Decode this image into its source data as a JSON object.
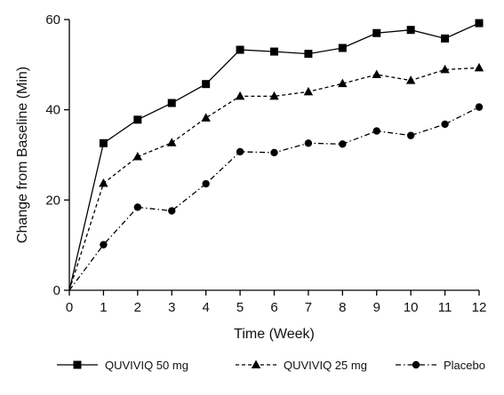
{
  "chart_data": {
    "type": "line",
    "xlabel": "Time (Week)",
    "ylabel": "Change from Baseline (Min)",
    "x": [
      0,
      1,
      2,
      3,
      4,
      5,
      6,
      7,
      8,
      9,
      10,
      11,
      12
    ],
    "xlim": [
      0,
      12
    ],
    "ylim": [
      0,
      60
    ],
    "x_ticks": [
      0,
      1,
      2,
      3,
      4,
      5,
      6,
      7,
      8,
      9,
      10,
      11,
      12
    ],
    "y_ticks": [
      0,
      20,
      40,
      60
    ],
    "grid": false,
    "legend_position": "bottom",
    "series": [
      {
        "name": "QUVIVIQ 50 mg",
        "marker": "square",
        "line_style": "solid",
        "color": "#000000",
        "values": [
          0,
          32.6,
          37.8,
          41.5,
          45.7,
          53.3,
          52.9,
          52.4,
          53.7,
          57.0,
          57.7,
          55.8,
          59.2
        ]
      },
      {
        "name": "QUVIVIQ 25 mg",
        "marker": "triangle",
        "line_style": "dashed",
        "color": "#000000",
        "values": [
          0,
          23.7,
          29.6,
          32.7,
          38.2,
          43.0,
          43.0,
          44.0,
          45.8,
          47.8,
          46.5,
          48.9,
          49.3
        ]
      },
      {
        "name": "Placebo",
        "marker": "circle",
        "line_style": "dash-dot",
        "color": "#000000",
        "values": [
          0,
          10.1,
          18.4,
          17.6,
          23.6,
          30.7,
          30.5,
          32.6,
          32.4,
          35.3,
          34.3,
          36.8,
          40.6
        ]
      }
    ]
  }
}
